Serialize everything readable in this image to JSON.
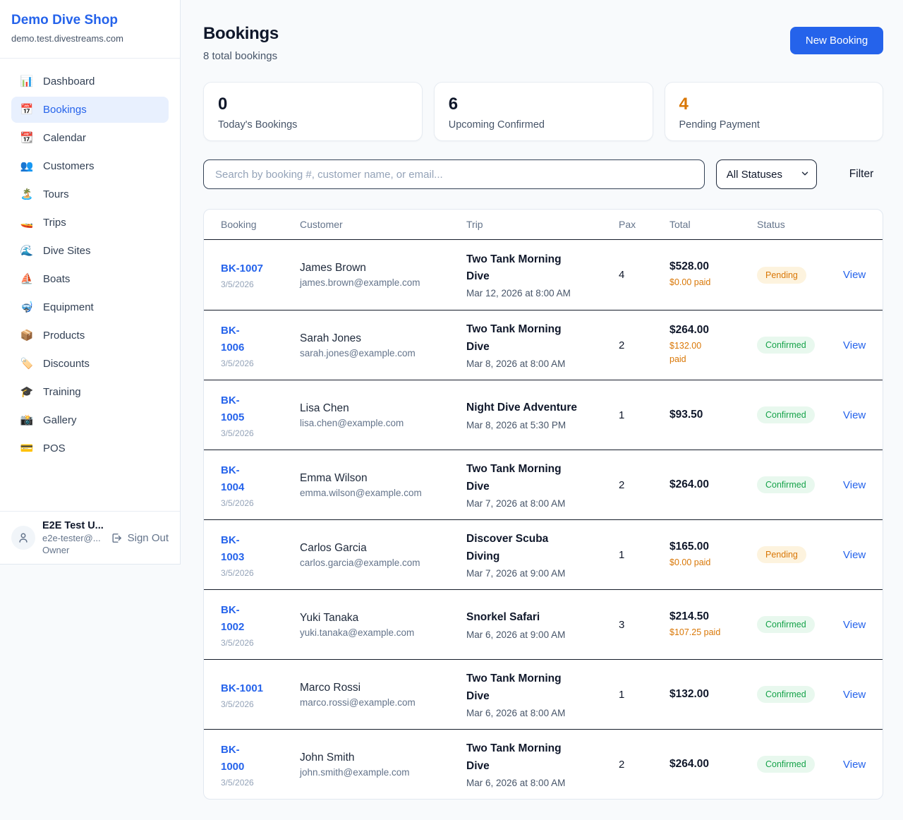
{
  "sidebar": {
    "brand": "Demo Dive Shop",
    "domain": "demo.test.divestreams.com",
    "items": [
      {
        "icon": "📊",
        "icon_name": "bar-chart-icon",
        "label": "Dashboard",
        "active": false
      },
      {
        "icon": "📅",
        "icon_name": "calendar-icon",
        "label": "Bookings",
        "active": true
      },
      {
        "icon": "📆",
        "icon_name": "tear-off-calendar-icon",
        "label": "Calendar",
        "active": false
      },
      {
        "icon": "👥",
        "icon_name": "people-icon",
        "label": "Customers",
        "active": false
      },
      {
        "icon": "🏝️",
        "icon_name": "island-icon",
        "label": "Tours",
        "active": false
      },
      {
        "icon": "🚤",
        "icon_name": "speedboat-icon",
        "label": "Trips",
        "active": false
      },
      {
        "icon": "🌊",
        "icon_name": "wave-icon",
        "label": "Dive Sites",
        "active": false
      },
      {
        "icon": "⛵",
        "icon_name": "sailboat-icon",
        "label": "Boats",
        "active": false
      },
      {
        "icon": "🤿",
        "icon_name": "diving-mask-icon",
        "label": "Equipment",
        "active": false
      },
      {
        "icon": "📦",
        "icon_name": "package-icon",
        "label": "Products",
        "active": false
      },
      {
        "icon": "🏷️",
        "icon_name": "tag-icon",
        "label": "Discounts",
        "active": false
      },
      {
        "icon": "🎓",
        "icon_name": "graduation-cap-icon",
        "label": "Training",
        "active": false
      },
      {
        "icon": "📸",
        "icon_name": "camera-icon",
        "label": "Gallery",
        "active": false
      },
      {
        "icon": "💳",
        "icon_name": "credit-card-icon",
        "label": "POS",
        "active": false
      }
    ],
    "user": {
      "name": "E2E Test U...",
      "email": "e2e-tester@...",
      "role": "Owner",
      "sign_out_label": "Sign Out"
    }
  },
  "header": {
    "title": "Bookings",
    "subtitle": "8 total bookings",
    "new_booking_label": "New Booking"
  },
  "stats": [
    {
      "value": "0",
      "label": "Today's Bookings",
      "color": "#0f172a"
    },
    {
      "value": "6",
      "label": "Upcoming Confirmed",
      "color": "#0f172a"
    },
    {
      "value": "4",
      "label": "Pending Payment",
      "color": "#d97706"
    }
  ],
  "toolbar": {
    "search_placeholder": "Search by booking #, customer name, or email...",
    "status_filter_value": "All Statuses",
    "filter_label": "Filter"
  },
  "table": {
    "columns": [
      "Booking",
      "Customer",
      "Trip",
      "Pax",
      "Total",
      "Status"
    ],
    "view_label": "View",
    "rows": [
      {
        "id_display": "BK-1007",
        "date": "3/5/2026",
        "customer": "James Brown",
        "email": "james.brown@example.com",
        "trip": "Two Tank Morning\nDive",
        "trip_datetime": "Mar 12, 2026 at 8:00 AM",
        "pax": "4",
        "total": "$528.00",
        "paid": "$0.00 paid",
        "status": "Pending"
      },
      {
        "id_display": "BK-\n1006",
        "date": "3/5/2026",
        "customer": "Sarah Jones",
        "email": "sarah.jones@example.com",
        "trip": "Two Tank Morning\nDive",
        "trip_datetime": "Mar 8, 2026 at 8:00 AM",
        "pax": "2",
        "total": "$264.00",
        "paid": "$132.00\npaid",
        "status": "Confirmed"
      },
      {
        "id_display": "BK-\n1005",
        "date": "3/5/2026",
        "customer": "Lisa Chen",
        "email": "lisa.chen@example.com",
        "trip": "Night Dive Adventure",
        "trip_datetime": "Mar 8, 2026 at 5:30 PM",
        "pax": "1",
        "total": "$93.50",
        "paid": "",
        "status": "Confirmed"
      },
      {
        "id_display": "BK-\n1004",
        "date": "3/5/2026",
        "customer": "Emma Wilson",
        "email": "emma.wilson@example.com",
        "trip": "Two Tank Morning\nDive",
        "trip_datetime": "Mar 7, 2026 at 8:00 AM",
        "pax": "2",
        "total": "$264.00",
        "paid": "",
        "status": "Confirmed"
      },
      {
        "id_display": "BK-\n1003",
        "date": "3/5/2026",
        "customer": "Carlos Garcia",
        "email": "carlos.garcia@example.com",
        "trip": "Discover Scuba\nDiving",
        "trip_datetime": "Mar 7, 2026 at 9:00 AM",
        "pax": "1",
        "total": "$165.00",
        "paid": "$0.00 paid",
        "status": "Pending"
      },
      {
        "id_display": "BK-\n1002",
        "date": "3/5/2026",
        "customer": "Yuki Tanaka",
        "email": "yuki.tanaka@example.com",
        "trip": "Snorkel Safari",
        "trip_datetime": "Mar 6, 2026 at 9:00 AM",
        "pax": "3",
        "total": "$214.50",
        "paid": "$107.25 paid",
        "status": "Confirmed"
      },
      {
        "id_display": "BK-1001",
        "date": "3/5/2026",
        "customer": "Marco Rossi",
        "email": "marco.rossi@example.com",
        "trip": "Two Tank Morning\nDive",
        "trip_datetime": "Mar 6, 2026 at 8:00 AM",
        "pax": "1",
        "total": "$132.00",
        "paid": "",
        "status": "Confirmed"
      },
      {
        "id_display": "BK-\n1000",
        "date": "3/5/2026",
        "customer": "John Smith",
        "email": "john.smith@example.com",
        "trip": "Two Tank Morning\nDive",
        "trip_datetime": "Mar 6, 2026 at 8:00 AM",
        "pax": "2",
        "total": "$264.00",
        "paid": "",
        "status": "Confirmed"
      }
    ]
  }
}
